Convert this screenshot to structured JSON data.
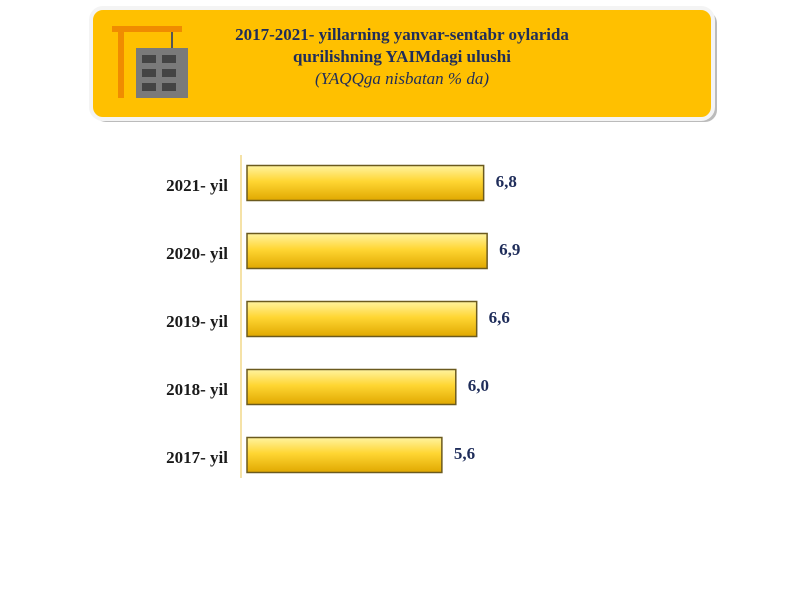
{
  "chart_data": {
    "type": "bar",
    "orientation": "horizontal",
    "title_lines": [
      "2017-2021- yillarning yanvar-sentabr oylarida",
      "qurilishning  YAIMdagi ulushi"
    ],
    "subtitle": "(YAQQga nisbatan % da)",
    "categories": [
      "2021- yil",
      "2020- yil",
      "2019- yil",
      "2018- yil",
      "2017- yil"
    ],
    "values": [
      6.8,
      6.9,
      6.6,
      6.0,
      5.6
    ],
    "value_labels": [
      "6,8",
      "6,9",
      "6,6",
      "6,0",
      "5,6"
    ],
    "color": "#ffd633"
  }
}
